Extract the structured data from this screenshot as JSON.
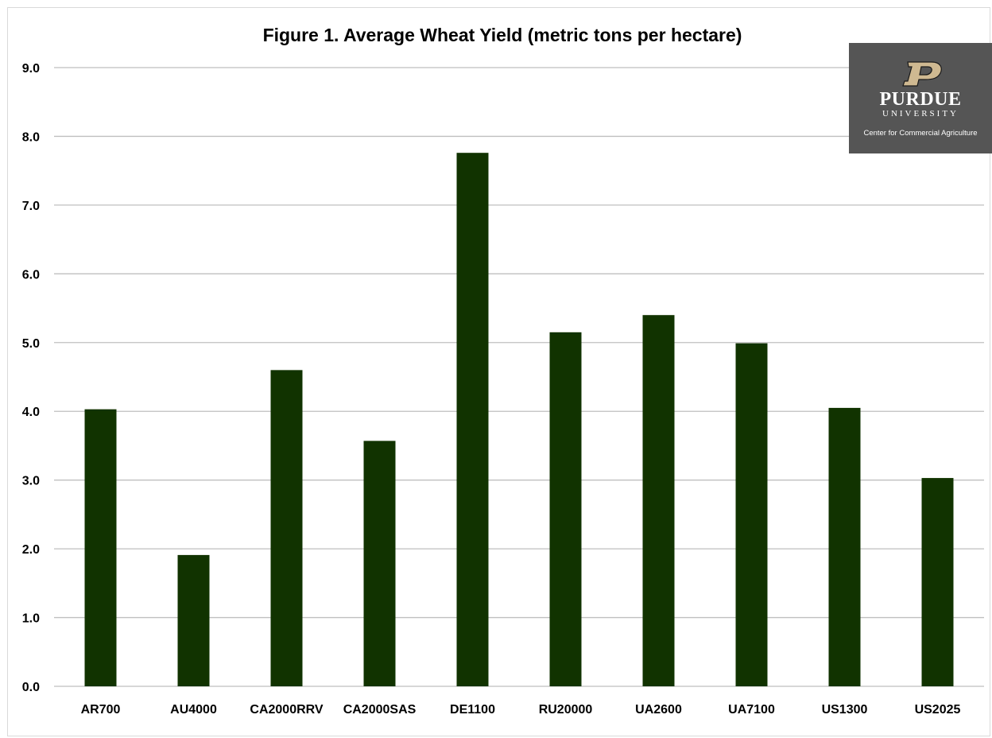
{
  "chart_data": {
    "type": "bar",
    "title": "Figure 1. Average Wheat Yield (metric tons per hectare)",
    "xlabel": "",
    "ylabel": "",
    "categories": [
      "AR700",
      "AU4000",
      "CA2000RRV",
      "CA2000SAS",
      "DE1100",
      "RU20000",
      "UA2600",
      "UA7100",
      "US1300",
      "US2025"
    ],
    "values": [
      4.03,
      1.91,
      4.6,
      3.57,
      7.76,
      5.15,
      5.4,
      4.99,
      4.05,
      3.03
    ],
    "ylim": [
      0,
      9
    ],
    "yticks": [
      "0.0",
      "1.0",
      "2.0",
      "3.0",
      "4.0",
      "5.0",
      "6.0",
      "7.0",
      "8.0",
      "9.0"
    ],
    "grid": true,
    "legend": "none",
    "bar_color": "#113300",
    "grid_color": "#bfbfbf"
  },
  "logo": {
    "name": "PURDUE",
    "sub": "UNIVERSITY",
    "caption": "Center for Commercial Agriculture",
    "background": "#555555",
    "mark_color": "#cfb991"
  }
}
